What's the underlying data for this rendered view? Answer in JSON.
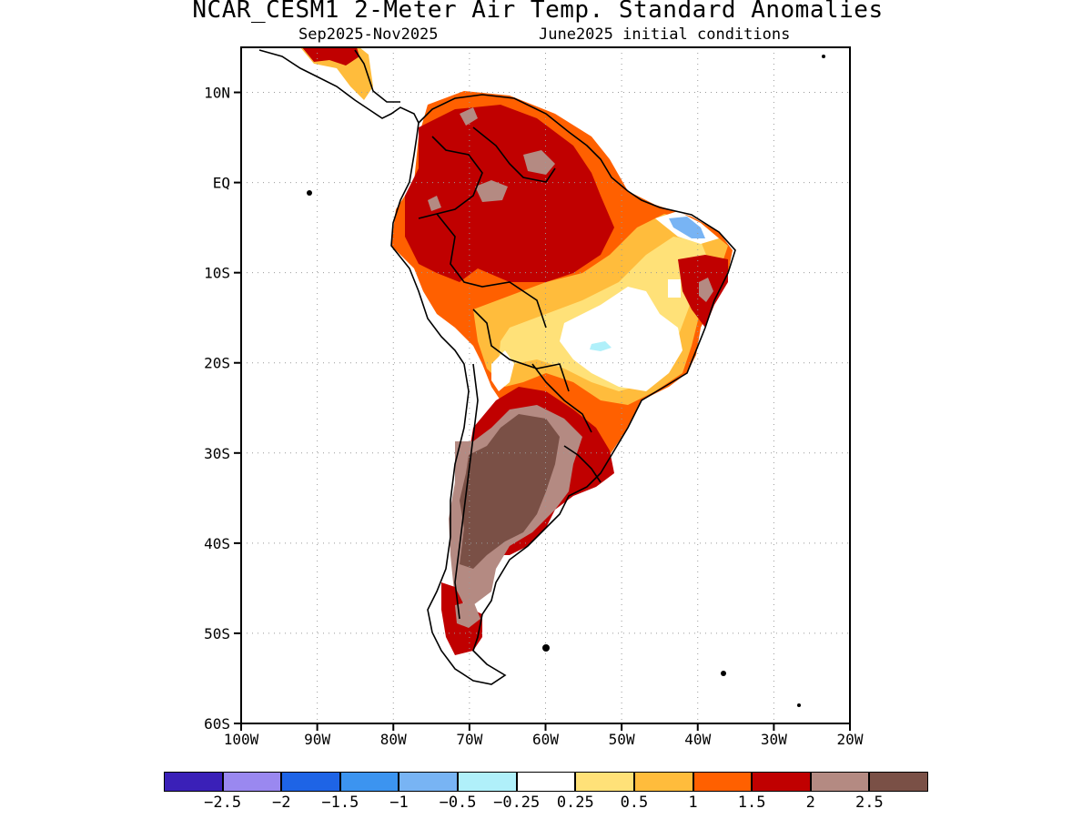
{
  "title": "NCAR_CESM1 2-Meter Air Temp. Standard Anomalies",
  "subtitle_left": "Sep2025-Nov2025",
  "subtitle_right": "June2025 initial conditions",
  "map": {
    "region": "South America",
    "lon_range": [
      -100,
      -20
    ],
    "lat_range": [
      -60,
      15
    ],
    "lat_ticks": [
      {
        "value": 10,
        "label": "10N"
      },
      {
        "value": 0,
        "label": "EQ"
      },
      {
        "value": -10,
        "label": "10S"
      },
      {
        "value": -20,
        "label": "20S"
      },
      {
        "value": -30,
        "label": "30S"
      },
      {
        "value": -40,
        "label": "40S"
      },
      {
        "value": -50,
        "label": "50S"
      },
      {
        "value": -60,
        "label": "60S"
      }
    ],
    "lon_ticks": [
      {
        "value": -100,
        "label": "100W"
      },
      {
        "value": -90,
        "label": "90W"
      },
      {
        "value": -80,
        "label": "80W"
      },
      {
        "value": -70,
        "label": "70W"
      },
      {
        "value": -60,
        "label": "60W"
      },
      {
        "value": -50,
        "label": "50W"
      },
      {
        "value": -40,
        "label": "40W"
      },
      {
        "value": -30,
        "label": "30W"
      },
      {
        "value": -20,
        "label": "20W"
      }
    ],
    "grid": "dotted"
  },
  "colorbar": {
    "colors": [
      "#3a20b8",
      "#9a88f0",
      "#1e64e6",
      "#3c94f0",
      "#78b4f4",
      "#b0f0fa",
      "#ffffff",
      "#ffe178",
      "#ffbc3c",
      "#ff6000",
      "#c00000",
      "#b48a82",
      "#7a5046"
    ],
    "labels": [
      "-2.5",
      "-2",
      "-1.5",
      "-1",
      "-0.5",
      "-0.25",
      "0.25",
      "0.5",
      "1",
      "1.5",
      "2",
      "2.5"
    ]
  }
}
